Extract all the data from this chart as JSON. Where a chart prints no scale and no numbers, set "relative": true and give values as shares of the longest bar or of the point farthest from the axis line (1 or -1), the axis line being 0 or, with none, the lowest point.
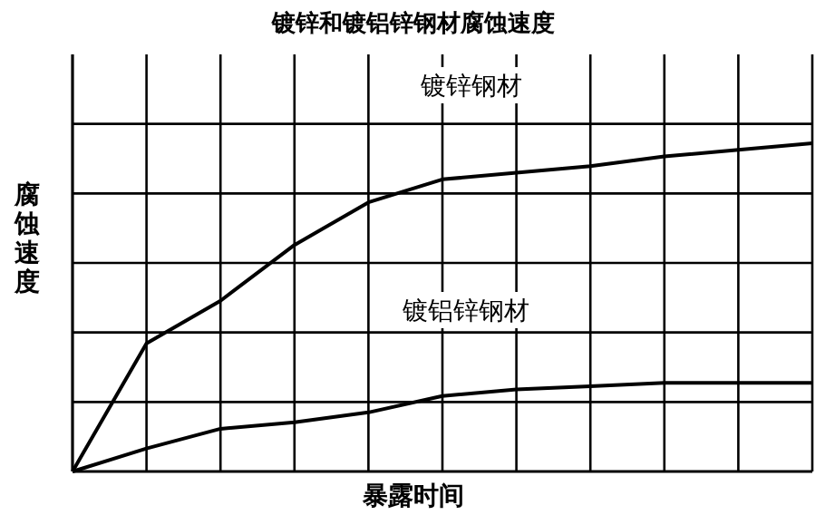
{
  "chart_data": {
    "type": "line",
    "title": "镀锌和镀铝锌钢材腐蚀速度",
    "xlabel": "暴露时间",
    "ylabel": "腐蚀速度",
    "relative": true,
    "grid": true,
    "marker": "none",
    "line_style": "solid",
    "categories": [
      null,
      null,
      null,
      null,
      null,
      null,
      null,
      null,
      null,
      null,
      null
    ],
    "series": [
      {
        "name": "镀锌钢材",
        "color": "#000000",
        "values": [
          0,
          0.39,
          0.52,
          0.69,
          0.82,
          0.89,
          0.91,
          0.93,
          0.96,
          0.98,
          1
        ]
      },
      {
        "name": "镀铝锌钢材",
        "color": "#000000",
        "values": [
          0,
          0.07,
          0.13,
          0.15,
          0.18,
          0.23,
          0.25,
          0.26,
          0.27,
          0.27,
          0.27
        ]
      }
    ]
  }
}
